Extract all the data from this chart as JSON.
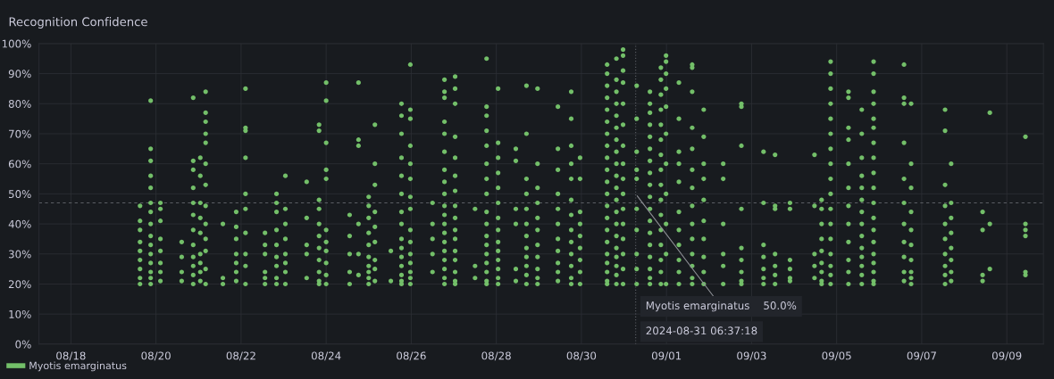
{
  "chart_data": {
    "type": "scatter",
    "title": "Recognition Confidence",
    "legend": "bottom left",
    "grid": true,
    "marker": "circle",
    "xlim": [
      "2024-08-17T06:00",
      "2024-09-09T20:40"
    ],
    "xticks": [
      {
        "value": "2024-08-18",
        "label": "08/18"
      },
      {
        "value": "2024-08-20",
        "label": "08/20"
      },
      {
        "value": "2024-08-22",
        "label": "08/22"
      },
      {
        "value": "2024-08-24",
        "label": "08/24"
      },
      {
        "value": "2024-08-26",
        "label": "08/26"
      },
      {
        "value": "2024-08-28",
        "label": "08/28"
      },
      {
        "value": "2024-08-30",
        "label": "08/30"
      },
      {
        "value": "2024-09-01",
        "label": "09/01"
      },
      {
        "value": "2024-09-03",
        "label": "09/03"
      },
      {
        "value": "2024-09-05",
        "label": "09/05"
      },
      {
        "value": "2024-09-07",
        "label": "09/07"
      },
      {
        "value": "2024-09-09",
        "label": "09/09"
      }
    ],
    "ylim": [
      0,
      100
    ],
    "yticks": [
      {
        "value": 0,
        "label": "0%"
      },
      {
        "value": 10,
        "label": "10%"
      },
      {
        "value": 20,
        "label": "20%"
      },
      {
        "value": 30,
        "label": "30%"
      },
      {
        "value": 40,
        "label": "40%"
      },
      {
        "value": 50,
        "label": "50%"
      },
      {
        "value": 60,
        "label": "60%"
      },
      {
        "value": 70,
        "label": "70%"
      },
      {
        "value": 80,
        "label": "80%"
      },
      {
        "value": 90,
        "label": "90%"
      },
      {
        "value": 100,
        "label": "100%"
      }
    ],
    "ref_lines": [
      {
        "axis": "y",
        "value": 47,
        "color": "#5a5d63",
        "line_style": "dashed"
      },
      {
        "axis": "x",
        "value": "2024-08-31T06:37",
        "label": "2024-08-31 06:37:18",
        "color": "#5a5d63",
        "line_style": "dotted"
      }
    ],
    "annotations": [
      {
        "text": "Myotis emarginatus    50.0%",
        "x": "2024-08-31T06:37",
        "y": 50
      }
    ],
    "series": [
      {
        "name": "Myotis emarginatus",
        "color": "#73bf69",
        "x": [
          "2024-08-19T15:00",
          "2024-08-19T15:00",
          "2024-08-19T15:00",
          "2024-08-19T15:00",
          "2024-08-19T15:00",
          "2024-08-19T15:00",
          "2024-08-19T15:00",
          "2024-08-19T15:00",
          "2024-08-19T15:00",
          "2024-08-19T21:00",
          "2024-08-19T21:00",
          "2024-08-19T21:00",
          "2024-08-19T21:00",
          "2024-08-19T21:00",
          "2024-08-19T21:00",
          "2024-08-19T21:00",
          "2024-08-19T21:00",
          "2024-08-19T21:00",
          "2024-08-19T21:00",
          "2024-08-19T21:00",
          "2024-08-19T21:00",
          "2024-08-19T21:00",
          "2024-08-19T21:00",
          "2024-08-19T21:00",
          "2024-08-20T02:30",
          "2024-08-20T02:30",
          "2024-08-20T02:30",
          "2024-08-20T02:30",
          "2024-08-20T02:30",
          "2024-08-20T02:30",
          "2024-08-20T02:30",
          "2024-08-20T02:30",
          "2024-08-20T14:30",
          "2024-08-20T14:30",
          "2024-08-20T14:30",
          "2024-08-20T14:30",
          "2024-08-20T21:00",
          "2024-08-20T21:00",
          "2024-08-20T21:00",
          "2024-08-20T21:00",
          "2024-08-20T21:00",
          "2024-08-20T21:00",
          "2024-08-20T21:00",
          "2024-08-20T21:00",
          "2024-08-20T21:00",
          "2024-08-20T21:00",
          "2024-08-20T21:00",
          "2024-08-20T21:00",
          "2024-08-21T01:00",
          "2024-08-21T01:00",
          "2024-08-21T01:00",
          "2024-08-21T01:00",
          "2024-08-21T01:00",
          "2024-08-21T01:00",
          "2024-08-21T01:00",
          "2024-08-21T01:00",
          "2024-08-21T01:00",
          "2024-08-21T04:00",
          "2024-08-21T04:00",
          "2024-08-21T04:00",
          "2024-08-21T04:00",
          "2024-08-21T04:00",
          "2024-08-21T04:00",
          "2024-08-21T04:00",
          "2024-08-21T04:00",
          "2024-08-21T04:00",
          "2024-08-21T04:00",
          "2024-08-21T04:00",
          "2024-08-21T04:00",
          "2024-08-21T04:00",
          "2024-08-21T13:45",
          "2024-08-21T13:45",
          "2024-08-21T13:45",
          "2024-08-21T21:15",
          "2024-08-21T21:15",
          "2024-08-21T21:15",
          "2024-08-21T21:15",
          "2024-08-21T21:15",
          "2024-08-21T21:15",
          "2024-08-21T21:15",
          "2024-08-22T02:30",
          "2024-08-22T02:30",
          "2024-08-22T02:30",
          "2024-08-22T02:30",
          "2024-08-22T02:30",
          "2024-08-22T02:30",
          "2024-08-22T02:30",
          "2024-08-22T02:30",
          "2024-08-22T02:30",
          "2024-08-22T02:30",
          "2024-08-22T13:30",
          "2024-08-22T13:30",
          "2024-08-22T13:30",
          "2024-08-22T13:30",
          "2024-08-22T13:30",
          "2024-08-22T13:30",
          "2024-08-22T20:00",
          "2024-08-22T20:00",
          "2024-08-22T20:00",
          "2024-08-22T20:00",
          "2024-08-22T20:00",
          "2024-08-22T20:00",
          "2024-08-22T20:00",
          "2024-08-22T20:00",
          "2024-08-22T20:00",
          "2024-08-23T01:00",
          "2024-08-23T01:00",
          "2024-08-23T01:00",
          "2024-08-23T01:00",
          "2024-08-23T01:00",
          "2024-08-23T01:00",
          "2024-08-23T01:00",
          "2024-08-23T01:00",
          "2024-08-23T13:00",
          "2024-08-23T13:00",
          "2024-08-23T13:00",
          "2024-08-23T13:00",
          "2024-08-23T13:00",
          "2024-08-23T20:00",
          "2024-08-23T20:00",
          "2024-08-23T20:00",
          "2024-08-23T20:00",
          "2024-08-23T20:00",
          "2024-08-23T20:00",
          "2024-08-23T20:00",
          "2024-08-23T20:00",
          "2024-08-23T20:00",
          "2024-08-23T20:00",
          "2024-08-23T20:00",
          "2024-08-24T00:00",
          "2024-08-24T00:00",
          "2024-08-24T00:00",
          "2024-08-24T00:00",
          "2024-08-24T00:00",
          "2024-08-24T00:00",
          "2024-08-24T00:00",
          "2024-08-24T00:00",
          "2024-08-24T00:00",
          "2024-08-24T00:00",
          "2024-08-24T00:00",
          "2024-08-24T13:15",
          "2024-08-24T13:15",
          "2024-08-24T13:15",
          "2024-08-24T13:15",
          "2024-08-24T13:15",
          "2024-08-24T18:15",
          "2024-08-24T18:15",
          "2024-08-24T18:15",
          "2024-08-24T18:15",
          "2024-08-24T18:15",
          "2024-08-24T18:15",
          "2024-08-25T00:00",
          "2024-08-25T00:00",
          "2024-08-25T00:00",
          "2024-08-25T00:00",
          "2024-08-25T00:00",
          "2024-08-25T00:00",
          "2024-08-25T00:00",
          "2024-08-25T00:00",
          "2024-08-25T00:00",
          "2024-08-25T00:00",
          "2024-08-25T03:30",
          "2024-08-25T03:30",
          "2024-08-25T03:30",
          "2024-08-25T03:30",
          "2024-08-25T03:30",
          "2024-08-25T03:30",
          "2024-08-25T03:30",
          "2024-08-25T03:30",
          "2024-08-25T03:30",
          "2024-08-25T12:30",
          "2024-08-25T12:30",
          "2024-08-25T18:30",
          "2024-08-25T18:30",
          "2024-08-25T18:30",
          "2024-08-25T18:30",
          "2024-08-25T18:30",
          "2024-08-25T18:30",
          "2024-08-25T18:30",
          "2024-08-25T18:30",
          "2024-08-25T18:30",
          "2024-08-25T18:30",
          "2024-08-25T18:30",
          "2024-08-25T18:30",
          "2024-08-25T18:30",
          "2024-08-25T18:30",
          "2024-08-25T18:30",
          "2024-08-25T23:30",
          "2024-08-25T23:30",
          "2024-08-25T23:30",
          "2024-08-25T23:30",
          "2024-08-25T23:30",
          "2024-08-25T23:30",
          "2024-08-25T23:30",
          "2024-08-25T23:30",
          "2024-08-25T23:30",
          "2024-08-25T23:30",
          "2024-08-25T23:30",
          "2024-08-25T23:30",
          "2024-08-25T23:30",
          "2024-08-25T23:30",
          "2024-08-25T23:30",
          "2024-08-26T12:00",
          "2024-08-26T12:00",
          "2024-08-26T12:00",
          "2024-08-26T12:00",
          "2024-08-26T12:00",
          "2024-08-26T18:45",
          "2024-08-26T18:45",
          "2024-08-26T18:45",
          "2024-08-26T18:45",
          "2024-08-26T18:45",
          "2024-08-26T18:45",
          "2024-08-26T18:45",
          "2024-08-26T18:45",
          "2024-08-26T18:45",
          "2024-08-26T18:45",
          "2024-08-26T18:45",
          "2024-08-26T18:45",
          "2024-08-26T18:45",
          "2024-08-26T18:45",
          "2024-08-26T18:45",
          "2024-08-26T18:45",
          "2024-08-26T18:45",
          "2024-08-26T18:45",
          "2024-08-26T18:45",
          "2024-08-27T00:45",
          "2024-08-27T00:45",
          "2024-08-27T00:45",
          "2024-08-27T00:45",
          "2024-08-27T00:45",
          "2024-08-27T00:45",
          "2024-08-27T00:45",
          "2024-08-27T00:45",
          "2024-08-27T00:45",
          "2024-08-27T00:45",
          "2024-08-27T00:45",
          "2024-08-27T00:45",
          "2024-08-27T00:45",
          "2024-08-27T00:45",
          "2024-08-27T00:45",
          "2024-08-27T00:45",
          "2024-08-27T12:00",
          "2024-08-27T12:00",
          "2024-08-27T12:00",
          "2024-08-27T18:30",
          "2024-08-27T18:30",
          "2024-08-27T18:30",
          "2024-08-27T18:30",
          "2024-08-27T18:30",
          "2024-08-27T18:30",
          "2024-08-27T18:30",
          "2024-08-27T18:30",
          "2024-08-27T18:30",
          "2024-08-27T18:30",
          "2024-08-27T18:30",
          "2024-08-27T18:30",
          "2024-08-27T18:30",
          "2024-08-27T18:30",
          "2024-08-27T18:30",
          "2024-08-27T18:30",
          "2024-08-27T18:30",
          "2024-08-28T01:00",
          "2024-08-28T01:00",
          "2024-08-28T01:00",
          "2024-08-28T01:00",
          "2024-08-28T01:00",
          "2024-08-28T01:00",
          "2024-08-28T01:00",
          "2024-08-28T01:00",
          "2024-08-28T01:00",
          "2024-08-28T01:00",
          "2024-08-28T01:00",
          "2024-08-28T01:00",
          "2024-08-28T01:00",
          "2024-08-28T01:00",
          "2024-08-28T11:00",
          "2024-08-28T11:00",
          "2024-08-28T11:00",
          "2024-08-28T11:00",
          "2024-08-28T11:00",
          "2024-08-28T11:00",
          "2024-08-28T17:00",
          "2024-08-28T17:00",
          "2024-08-28T17:00",
          "2024-08-28T17:00",
          "2024-08-28T17:00",
          "2024-08-28T17:00",
          "2024-08-28T17:00",
          "2024-08-28T17:00",
          "2024-08-28T17:00",
          "2024-08-28T17:00",
          "2024-08-28T17:00",
          "2024-08-28T17:00",
          "2024-08-28T23:15",
          "2024-08-28T23:15",
          "2024-08-28T23:15",
          "2024-08-28T23:15",
          "2024-08-28T23:15",
          "2024-08-28T23:15",
          "2024-08-28T23:15",
          "2024-08-28T23:15",
          "2024-08-28T23:15",
          "2024-08-28T23:15",
          "2024-08-28T23:15",
          "2024-08-29T10:45",
          "2024-08-29T10:45",
          "2024-08-29T10:45",
          "2024-08-29T10:45",
          "2024-08-29T10:45",
          "2024-08-29T10:45",
          "2024-08-29T10:45",
          "2024-08-29T10:45",
          "2024-08-29T10:45",
          "2024-08-29T10:45",
          "2024-08-29T10:45",
          "2024-08-29T18:15",
          "2024-08-29T18:15",
          "2024-08-29T18:15",
          "2024-08-29T18:15",
          "2024-08-29T18:15",
          "2024-08-29T18:15",
          "2024-08-29T18:15",
          "2024-08-29T18:15",
          "2024-08-29T18:15",
          "2024-08-29T18:15",
          "2024-08-29T18:15",
          "2024-08-29T18:15",
          "2024-08-29T18:15",
          "2024-08-29T23:15",
          "2024-08-29T23:15",
          "2024-08-29T23:15",
          "2024-08-29T23:15",
          "2024-08-29T23:15",
          "2024-08-29T23:15",
          "2024-08-29T23:15",
          "2024-08-29T23:15",
          "2024-08-29T23:15",
          "2024-08-30T14:30",
          "2024-08-30T14:30",
          "2024-08-30T14:30",
          "2024-08-30T14:30",
          "2024-08-30T14:30",
          "2024-08-30T14:30",
          "2024-08-30T14:30",
          "2024-08-30T14:30",
          "2024-08-30T14:30",
          "2024-08-30T14:30",
          "2024-08-30T14:30",
          "2024-08-30T14:30",
          "2024-08-30T14:30",
          "2024-08-30T14:30",
          "2024-08-30T14:30",
          "2024-08-30T14:30",
          "2024-08-30T14:30",
          "2024-08-30T14:30",
          "2024-08-30T14:30",
          "2024-08-30T14:30",
          "2024-08-30T14:30",
          "2024-08-30T19:45",
          "2024-08-30T19:45",
          "2024-08-30T19:45",
          "2024-08-30T19:45",
          "2024-08-30T19:45",
          "2024-08-30T19:45",
          "2024-08-30T19:45",
          "2024-08-30T19:45",
          "2024-08-30T19:45",
          "2024-08-30T19:45",
          "2024-08-30T19:45",
          "2024-08-30T19:45",
          "2024-08-30T19:45",
          "2024-08-30T19:45",
          "2024-08-30T19:45",
          "2024-08-30T19:45",
          "2024-08-30T19:45",
          "2024-08-30T19:45",
          "2024-08-30T19:45",
          "2024-08-30T19:45",
          "2024-08-30T23:30",
          "2024-08-30T23:30",
          "2024-08-30T23:30",
          "2024-08-30T23:30",
          "2024-08-30T23:30",
          "2024-08-30T23:30",
          "2024-08-30T23:30",
          "2024-08-30T23:30",
          "2024-08-30T23:30",
          "2024-08-30T23:30",
          "2024-08-30T23:30",
          "2024-08-30T23:30",
          "2024-08-30T23:30",
          "2024-08-30T23:30",
          "2024-08-30T23:30",
          "2024-08-30T23:30",
          "2024-08-31T07:10",
          "2024-08-31T07:10",
          "2024-08-31T07:10",
          "2024-08-31T07:10",
          "2024-08-31T07:10",
          "2024-08-31T07:10",
          "2024-08-31T07:10",
          "2024-08-31T07:10",
          "2024-08-31T07:10",
          "2024-08-31T07:10",
          "2024-08-31T14:40",
          "2024-08-31T14:40",
          "2024-08-31T14:40",
          "2024-08-31T14:40",
          "2024-08-31T14:40",
          "2024-08-31T14:40",
          "2024-08-31T14:40",
          "2024-08-31T14:40",
          "2024-08-31T14:40",
          "2024-08-31T14:40",
          "2024-08-31T14:40",
          "2024-08-31T14:40",
          "2024-08-31T14:40",
          "2024-08-31T14:40",
          "2024-08-31T14:40",
          "2024-08-31T14:40",
          "2024-08-31T14:40",
          "2024-08-31T14:40",
          "2024-08-31T20:50",
          "2024-08-31T20:50",
          "2024-08-31T20:50",
          "2024-08-31T20:50",
          "2024-08-31T20:50",
          "2024-08-31T20:50",
          "2024-08-31T20:50",
          "2024-08-31T20:50",
          "2024-08-31T20:50",
          "2024-08-31T20:50",
          "2024-08-31T20:50",
          "2024-08-31T20:50",
          "2024-08-31T20:50",
          "2024-08-31T20:50",
          "2024-08-31T20:50",
          "2024-08-31T20:50",
          "2024-08-31T23:45",
          "2024-08-31T23:45",
          "2024-08-31T23:45",
          "2024-08-31T23:45",
          "2024-08-31T23:45",
          "2024-08-31T23:45",
          "2024-08-31T23:45",
          "2024-08-31T23:45",
          "2024-08-31T23:45",
          "2024-08-31T23:45",
          "2024-08-31T23:45",
          "2024-09-01T07:00",
          "2024-09-01T07:00",
          "2024-09-01T07:00",
          "2024-09-01T07:00",
          "2024-09-01T07:00",
          "2024-09-01T07:00",
          "2024-09-01T07:00",
          "2024-09-01T07:00",
          "2024-09-01T07:00",
          "2024-09-01T07:00",
          "2024-09-01T07:00",
          "2024-09-01T14:30",
          "2024-09-01T14:30",
          "2024-09-01T14:30",
          "2024-09-01T14:30",
          "2024-09-01T14:30",
          "2024-09-01T14:30",
          "2024-09-01T14:30",
          "2024-09-01T14:30",
          "2024-09-01T14:30",
          "2024-09-01T14:30",
          "2024-09-01T14:30",
          "2024-09-01T14:30",
          "2024-09-01T14:30",
          "2024-09-01T14:30",
          "2024-09-01T21:00",
          "2024-09-01T21:00",
          "2024-09-01T21:00",
          "2024-09-01T21:00",
          "2024-09-01T21:00",
          "2024-09-01T21:00",
          "2024-09-01T21:00",
          "2024-09-01T21:00",
          "2024-09-01T21:00",
          "2024-09-01T21:00",
          "2024-09-02T08:00",
          "2024-09-02T08:00",
          "2024-09-02T08:00",
          "2024-09-02T08:00",
          "2024-09-02T08:00",
          "2024-09-02T08:00",
          "2024-09-02T18:15",
          "2024-09-02T18:15",
          "2024-09-02T18:15",
          "2024-09-02T18:15",
          "2024-09-02T18:15",
          "2024-09-02T18:15",
          "2024-09-02T18:15",
          "2024-09-02T18:15",
          "2024-09-02T18:15",
          "2024-09-03T06:45",
          "2024-09-03T06:45",
          "2024-09-03T06:45",
          "2024-09-03T06:45",
          "2024-09-03T06:45",
          "2024-09-03T06:45",
          "2024-09-03T06:45",
          "2024-09-03T13:15",
          "2024-09-03T13:15",
          "2024-09-03T13:15",
          "2024-09-03T13:15",
          "2024-09-03T13:15",
          "2024-09-03T13:15",
          "2024-09-03T13:15",
          "2024-09-03T21:40",
          "2024-09-03T21:40",
          "2024-09-03T21:40",
          "2024-09-03T21:40",
          "2024-09-03T21:40",
          "2024-09-03T21:40",
          "2024-09-04T11:30",
          "2024-09-04T11:30",
          "2024-09-04T11:30",
          "2024-09-04T11:30",
          "2024-09-04T11:30",
          "2024-09-04T15:30",
          "2024-09-04T15:30",
          "2024-09-04T15:30",
          "2024-09-04T15:30",
          "2024-09-04T15:30",
          "2024-09-04T15:30",
          "2024-09-04T15:30",
          "2024-09-04T15:30",
          "2024-09-04T15:30",
          "2024-09-04T20:35",
          "2024-09-04T20:35",
          "2024-09-04T20:35",
          "2024-09-04T20:35",
          "2024-09-04T20:35",
          "2024-09-04T20:35",
          "2024-09-04T20:35",
          "2024-09-04T20:35",
          "2024-09-04T20:35",
          "2024-09-04T20:35",
          "2024-09-04T20:35",
          "2024-09-04T20:35",
          "2024-09-04T20:35",
          "2024-09-04T20:35",
          "2024-09-04T20:35",
          "2024-09-04T20:35",
          "2024-09-04T20:35",
          "2024-09-05T06:40",
          "2024-09-05T06:40",
          "2024-09-05T06:40",
          "2024-09-05T06:40",
          "2024-09-05T06:40",
          "2024-09-05T06:40",
          "2024-09-05T06:40",
          "2024-09-05T06:40",
          "2024-09-05T06:40",
          "2024-09-05T06:40",
          "2024-09-05T06:40",
          "2024-09-05T06:40",
          "2024-09-05T14:10",
          "2024-09-05T14:10",
          "2024-09-05T14:10",
          "2024-09-05T14:10",
          "2024-09-05T14:10",
          "2024-09-05T14:10",
          "2024-09-05T14:10",
          "2024-09-05T14:10",
          "2024-09-05T14:10",
          "2024-09-05T14:10",
          "2024-09-05T14:10",
          "2024-09-05T14:10",
          "2024-09-05T14:10",
          "2024-09-05T14:10",
          "2024-09-05T20:50",
          "2024-09-05T20:50",
          "2024-09-05T20:50",
          "2024-09-05T20:50",
          "2024-09-05T20:50",
          "2024-09-05T20:50",
          "2024-09-05T20:50",
          "2024-09-05T20:50",
          "2024-09-05T20:50",
          "2024-09-05T20:50",
          "2024-09-05T20:50",
          "2024-09-05T20:50",
          "2024-09-05T20:50",
          "2024-09-05T20:50",
          "2024-09-05T20:50",
          "2024-09-05T20:50",
          "2024-09-05T20:50",
          "2024-09-05T20:50",
          "2024-09-05T20:50",
          "2024-09-06T14:00",
          "2024-09-06T14:00",
          "2024-09-06T14:00",
          "2024-09-06T14:00",
          "2024-09-06T14:00",
          "2024-09-06T14:00",
          "2024-09-06T14:00",
          "2024-09-06T14:00",
          "2024-09-06T14:00",
          "2024-09-06T14:00",
          "2024-09-06T14:00",
          "2024-09-06T18:00",
          "2024-09-06T18:00",
          "2024-09-06T18:00",
          "2024-09-06T18:00",
          "2024-09-06T18:00",
          "2024-09-06T18:00",
          "2024-09-06T18:00",
          "2024-09-06T18:00",
          "2024-09-06T18:00",
          "2024-09-06T18:00",
          "2024-09-07T13:10",
          "2024-09-07T13:10",
          "2024-09-07T13:10",
          "2024-09-07T13:10",
          "2024-09-07T13:10",
          "2024-09-07T13:10",
          "2024-09-07T13:10",
          "2024-09-07T13:10",
          "2024-09-07T13:10",
          "2024-09-07T13:10",
          "2024-09-07T16:35",
          "2024-09-07T16:35",
          "2024-09-07T16:35",
          "2024-09-07T16:35",
          "2024-09-07T16:35",
          "2024-09-07T16:35",
          "2024-09-07T16:35",
          "2024-09-07T16:35",
          "2024-09-08T10:20",
          "2024-09-08T10:20",
          "2024-09-08T10:20",
          "2024-09-08T10:20",
          "2024-09-08T14:25",
          "2024-09-08T14:25",
          "2024-09-08T14:25",
          "2024-09-09T10:30",
          "2024-09-09T10:30",
          "2024-09-09T10:30",
          "2024-09-09T10:30",
          "2024-09-09T10:30",
          "2024-09-09T10:30"
        ],
        "values": [
          46,
          41,
          38,
          34,
          31,
          28,
          25,
          22,
          20,
          81,
          65,
          61,
          56,
          52,
          47,
          44,
          40,
          36,
          33,
          30,
          27,
          24,
          22,
          20,
          47,
          45,
          41,
          35,
          31,
          27,
          24,
          21,
          34,
          29,
          24,
          21,
          82,
          61,
          58,
          52,
          47,
          43,
          38,
          33,
          29,
          26,
          23,
          20,
          62,
          56,
          47,
          42,
          37,
          30,
          27,
          24,
          21,
          84,
          77,
          74,
          70,
          67,
          60,
          53,
          46,
          40,
          35,
          31,
          25,
          20,
          40,
          22,
          20,
          44,
          39,
          35,
          30,
          27,
          24,
          21,
          85,
          72,
          71,
          62,
          50,
          45,
          37,
          30,
          26,
          20,
          37,
          33,
          30,
          24,
          22,
          20,
          50,
          47,
          44,
          38,
          33,
          29,
          26,
          22,
          20,
          56,
          45,
          40,
          35,
          30,
          27,
          24,
          20,
          54,
          42,
          33,
          30,
          22,
          73,
          71,
          48,
          45,
          40,
          36,
          32,
          28,
          24,
          21,
          20,
          87,
          81,
          67,
          58,
          55,
          38,
          34,
          31,
          27,
          23,
          20,
          43,
          36,
          30,
          24,
          20,
          87,
          68,
          66,
          40,
          30,
          23,
          49,
          46,
          42,
          37,
          33,
          29,
          26,
          24,
          22,
          20,
          73,
          60,
          53,
          44,
          39,
          34,
          28,
          25,
          21,
          31,
          21,
          80,
          76,
          70,
          62,
          56,
          50,
          44,
          40,
          35,
          32,
          29,
          26,
          23,
          21,
          20,
          93,
          78,
          75,
          66,
          60,
          55,
          49,
          45,
          38,
          34,
          30,
          27,
          24,
          22,
          20,
          47,
          40,
          35,
          30,
          24,
          88,
          84,
          82,
          74,
          70,
          64,
          58,
          54,
          50,
          46,
          43,
          40,
          37,
          34,
          31,
          28,
          25,
          22,
          20,
          89,
          85,
          80,
          69,
          62,
          56,
          51,
          46,
          42,
          38,
          35,
          31,
          28,
          24,
          21,
          20,
          45,
          26,
          22,
          95,
          79,
          76,
          71,
          66,
          60,
          55,
          50,
          44,
          40,
          36,
          33,
          30,
          27,
          24,
          21,
          20,
          85,
          67,
          62,
          57,
          52,
          47,
          42,
          38,
          34,
          31,
          28,
          25,
          22,
          20,
          65,
          61,
          45,
          40,
          25,
          21,
          86,
          70,
          55,
          50,
          45,
          40,
          36,
          32,
          29,
          26,
          23,
          20,
          85,
          60,
          52,
          47,
          42,
          38,
          33,
          29,
          25,
          22,
          20,
          79,
          65,
          58,
          50,
          45,
          40,
          35,
          31,
          27,
          24,
          21,
          84,
          75,
          66,
          60,
          55,
          48,
          43,
          38,
          34,
          30,
          26,
          22,
          20,
          62,
          55,
          44,
          40,
          36,
          32,
          28,
          24,
          20,
          93,
          90,
          86,
          82,
          78,
          74,
          70,
          66,
          62,
          58,
          54,
          50,
          46,
          42,
          38,
          34,
          30,
          27,
          24,
          21,
          20,
          95,
          88,
          84,
          80,
          76,
          72,
          68,
          64,
          60,
          56,
          52,
          48,
          44,
          40,
          36,
          32,
          29,
          26,
          23,
          20,
          98,
          96,
          91,
          87,
          80,
          73,
          66,
          60,
          55,
          50,
          45,
          40,
          35,
          30,
          25,
          20,
          86,
          75,
          64,
          58,
          55,
          45,
          38,
          30,
          25,
          20,
          84,
          80,
          77,
          73,
          69,
          65,
          61,
          57,
          53,
          49,
          45,
          41,
          37,
          33,
          29,
          25,
          22,
          20,
          92,
          88,
          83,
          78,
          73,
          68,
          63,
          58,
          53,
          48,
          43,
          38,
          33,
          28,
          24,
          20,
          96,
          94,
          90,
          85,
          79,
          70,
          60,
          50,
          40,
          30,
          20,
          87,
          75,
          64,
          60,
          54,
          44,
          38,
          33,
          28,
          24,
          20,
          93,
          92,
          84,
          72,
          65,
          58,
          52,
          46,
          40,
          35,
          30,
          26,
          22,
          20,
          78,
          69,
          60,
          55,
          48,
          41,
          35,
          29,
          24,
          20,
          60,
          55,
          40,
          30,
          26,
          20,
          80,
          79,
          66,
          45,
          32,
          28,
          24,
          21,
          20,
          64,
          47,
          33,
          29,
          25,
          22,
          20,
          63,
          46,
          45,
          30,
          26,
          23,
          20,
          47,
          45,
          28,
          25,
          22,
          21,
          63,
          46,
          30,
          26,
          22,
          48,
          45,
          40,
          35,
          31,
          27,
          24,
          21,
          20,
          94,
          90,
          85,
          80,
          75,
          70,
          65,
          60,
          55,
          50,
          45,
          40,
          35,
          30,
          26,
          23,
          20,
          84,
          82,
          72,
          68,
          60,
          52,
          46,
          40,
          34,
          28,
          24,
          20,
          78,
          70,
          62,
          56,
          52,
          48,
          44,
          40,
          36,
          32,
          29,
          26,
          23,
          20,
          94,
          90,
          84,
          80,
          75,
          72,
          67,
          62,
          57,
          52,
          47,
          42,
          38,
          34,
          30,
          27,
          24,
          21,
          20,
          93,
          82,
          80,
          67,
          55,
          47,
          40,
          34,
          29,
          24,
          21,
          80,
          60,
          52,
          44,
          38,
          33,
          28,
          24,
          22,
          20,
          78,
          71,
          53,
          46,
          40,
          35,
          30,
          26,
          23,
          20,
          60,
          47,
          42,
          37,
          32,
          28,
          24,
          21,
          44,
          38,
          23,
          21,
          77,
          40,
          25,
          69,
          40,
          38,
          36,
          24,
          23
        ]
      }
    ]
  }
}
